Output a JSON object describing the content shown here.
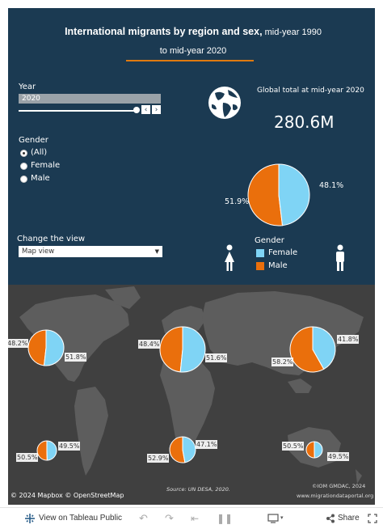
{
  "title": {
    "bold": "International migrants by region and sex,",
    "rest": " mid-year 1990 to mid-year 2020"
  },
  "filters": {
    "year_label": "Year",
    "year_value": "2020",
    "prev_icon": "chevron-left-icon",
    "next_icon": "chevron-right-icon",
    "gender_label": "Gender",
    "gender_options": [
      "(All)",
      "Female",
      "Male"
    ],
    "gender_selected": "(All)",
    "view_label": "Change the view",
    "view_value": "Map view"
  },
  "summary": {
    "globe_icon": "globe-icon",
    "label": "Global total at mid-year",
    "year": "2020",
    "value": "280.6M",
    "female_pct_label": "48.1%",
    "male_pct_label": "51.9%"
  },
  "legend": {
    "title": "Gender",
    "items": [
      {
        "label": "Female",
        "color": "#7fd4f5"
      },
      {
        "label": "Male",
        "color": "#ea6f0c"
      }
    ],
    "female_icon": "female-person-icon",
    "male_icon": "male-person-icon"
  },
  "chart_data": {
    "type": "pie",
    "title": "",
    "global_pie": {
      "categories": [
        "Female",
        "Male"
      ],
      "values": [
        48.1,
        51.9
      ],
      "colors": [
        "#7fd4f5",
        "#ea6f0c"
      ]
    },
    "regional_pies": [
      {
        "female": 51.8,
        "male": 48.2,
        "female_label": "51.8%",
        "male_label": "48.2%"
      },
      {
        "female": 51.6,
        "male": 48.4,
        "female_label": "51.6%",
        "male_label": "48.4%"
      },
      {
        "female": 41.8,
        "male": 58.2,
        "female_label": "41.8%",
        "male_label": "58.2%"
      },
      {
        "female": 49.5,
        "male": 50.5,
        "female_label": "49.5%",
        "male_label": "50.5%"
      },
      {
        "female": 47.1,
        "male": 52.9,
        "female_label": "47.1%",
        "male_label": "52.9%"
      },
      {
        "female": 49.5,
        "male": 50.5,
        "female_label": "49.5%",
        "male_label": "50.5%"
      }
    ]
  },
  "map": {
    "attribution": "© 2024 Mapbox  © OpenStreetMap",
    "source": "Source: UN DESA, 2020.",
    "copyright": "©IOM GMDAC, 2024",
    "site": "www.migrationdataportal.org"
  },
  "toolbar": {
    "tableau_icon": "tableau-logo-icon",
    "view_label": "View on Tableau Public",
    "undo_icon": "undo-icon",
    "redo_icon": "redo-icon",
    "revert_icon": "revert-icon",
    "share_label": "Share",
    "download_icon": "download-icon",
    "share_icon": "share-icon",
    "fullscreen_icon": "fullscreen-icon"
  }
}
